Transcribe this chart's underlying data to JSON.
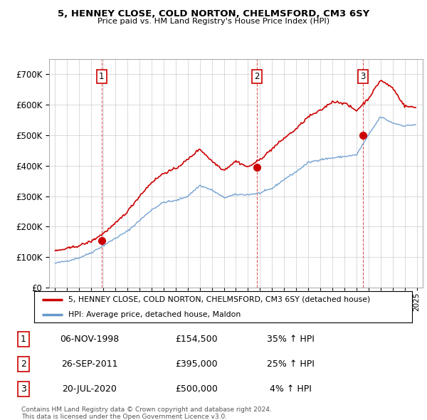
{
  "title": "5, HENNEY CLOSE, COLD NORTON, CHELMSFORD, CM3 6SY",
  "subtitle": "Price paid vs. HM Land Registry's House Price Index (HPI)",
  "legend_entry1": "5, HENNEY CLOSE, COLD NORTON, CHELMSFORD, CM3 6SY (detached house)",
  "legend_entry2": "HPI: Average price, detached house, Maldon",
  "transactions": [
    {
      "num": 1,
      "date": "06-NOV-1998",
      "price": 154500,
      "pct": "35%",
      "dir": "↑"
    },
    {
      "num": 2,
      "date": "26-SEP-2011",
      "price": 395000,
      "pct": "25%",
      "dir": "↑"
    },
    {
      "num": 3,
      "date": "20-JUL-2020",
      "price": 500000,
      "pct": "4%",
      "dir": "↑"
    }
  ],
  "transaction_dates_decimal": [
    1998.847,
    2011.733,
    2020.548
  ],
  "footnote1": "Contains HM Land Registry data © Crown copyright and database right 2024.",
  "footnote2": "This data is licensed under the Open Government Licence v3.0.",
  "red_color": "#cc0000",
  "blue_color": "#6699cc",
  "vline_color": "#cc0000",
  "dot_color": "#cc0000",
  "background_color": "#ffffff",
  "grid_color": "#cccccc",
  "ylim": [
    0,
    750000
  ],
  "xlim_start": 1994.5,
  "xlim_end": 2025.5,
  "hpi_keypoints_x": [
    1995.0,
    1996.0,
    1997.0,
    1998.0,
    1999.0,
    2000.0,
    2001.0,
    2002.0,
    2003.0,
    2004.0,
    2005.0,
    2006.0,
    2007.0,
    2008.0,
    2009.0,
    2010.0,
    2011.0,
    2012.0,
    2013.0,
    2014.0,
    2015.0,
    2016.0,
    2017.0,
    2018.0,
    2019.0,
    2020.0,
    2021.0,
    2022.0,
    2023.0,
    2024.0,
    2024.99
  ],
  "hpi_keypoints_y": [
    80000,
    88000,
    98000,
    115000,
    138000,
    162000,
    185000,
    220000,
    255000,
    280000,
    285000,
    300000,
    335000,
    320000,
    295000,
    305000,
    305000,
    310000,
    325000,
    355000,
    380000,
    410000,
    420000,
    425000,
    430000,
    435000,
    500000,
    560000,
    540000,
    530000,
    535000
  ],
  "red_keypoints_x": [
    1995.0,
    1996.0,
    1997.0,
    1998.0,
    1999.0,
    2000.0,
    2001.0,
    2002.0,
    2003.0,
    2004.0,
    2005.0,
    2006.0,
    2007.0,
    2008.0,
    2009.0,
    2010.0,
    2011.0,
    2012.0,
    2013.0,
    2014.0,
    2015.0,
    2016.0,
    2017.0,
    2018.0,
    2019.0,
    2020.0,
    2021.0,
    2022.0,
    2023.0,
    2024.0,
    2024.99
  ],
  "red_keypoints_y": [
    120000,
    128000,
    138000,
    152000,
    178000,
    210000,
    250000,
    300000,
    345000,
    375000,
    390000,
    420000,
    455000,
    415000,
    385000,
    415000,
    395000,
    420000,
    455000,
    490000,
    520000,
    560000,
    580000,
    610000,
    605000,
    580000,
    620000,
    680000,
    655000,
    595000,
    590000
  ]
}
